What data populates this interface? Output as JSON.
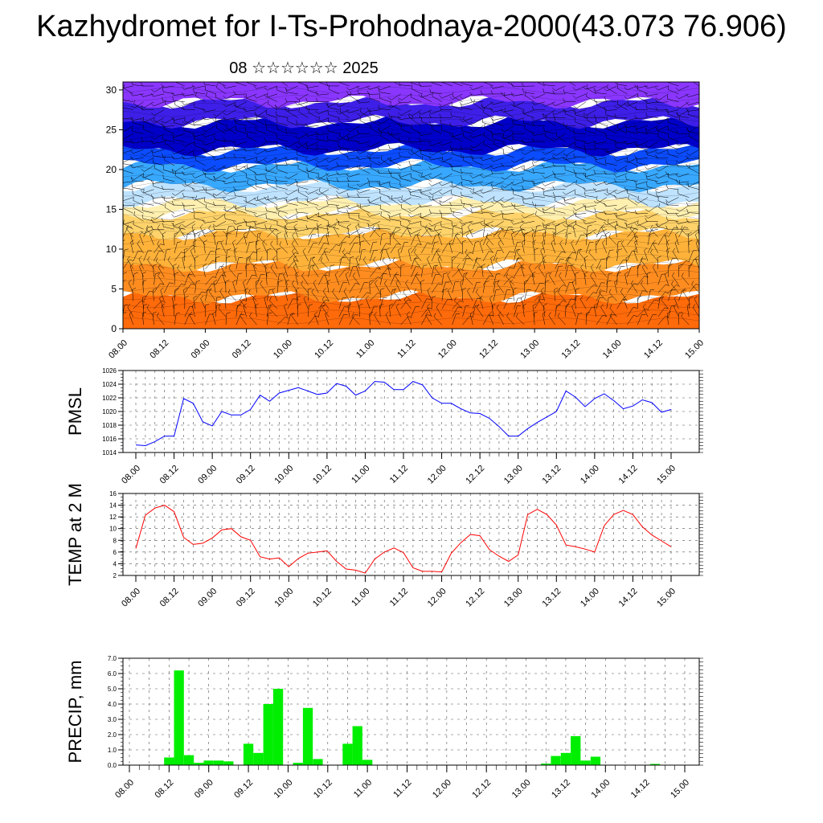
{
  "title": "Kazhydromet for I-Ts-Prohodnaya-2000(43.073 76.906)",
  "subtitle": "08 ☆☆☆☆☆☆ 2025",
  "colors": {
    "pmsl_line": "#0000ff",
    "temp_line": "#ff0000",
    "precip_bar": "#00ee00",
    "wind_barb": "#000000",
    "cross_section_top": "#7a2fff",
    "cross_section_mid": "#0000cc",
    "cross_section_low": "#ffe28a",
    "cross_section_bottom": "#ff5a00"
  },
  "chart_data": [
    {
      "type": "heatmap",
      "name": "height-time cross section with wind barbs",
      "x_ticks": [
        "08.00",
        "08.12",
        "09.00",
        "09.12",
        "10.00",
        "10.12",
        "11.00",
        "11.12",
        "12.00",
        "12.12",
        "13.00",
        "13.12",
        "14.00",
        "14.12",
        "15.00"
      ],
      "y_ticks": [
        0,
        5,
        10,
        15,
        20,
        25,
        30
      ],
      "ylim": [
        0,
        31
      ],
      "xlim": [
        0,
        168
      ],
      "color_bands": [
        {
          "from": 0,
          "to": 4,
          "color": "#ff6a0a"
        },
        {
          "from": 4,
          "to": 8,
          "color": "#ff8c1f"
        },
        {
          "from": 8,
          "to": 12,
          "color": "#ffb23a"
        },
        {
          "from": 12,
          "to": 14.5,
          "color": "#ffd36a"
        },
        {
          "from": 14.5,
          "to": 16,
          "color": "#fff0b0"
        },
        {
          "from": 16,
          "to": 18,
          "color": "#bfe3ff"
        },
        {
          "from": 18,
          "to": 20.5,
          "color": "#38a8ff"
        },
        {
          "from": 20.5,
          "to": 22.5,
          "color": "#0b4cff"
        },
        {
          "from": 22.5,
          "to": 26,
          "color": "#0000c8"
        },
        {
          "from": 26,
          "to": 28.5,
          "color": "#3d1fe8"
        },
        {
          "from": 28.5,
          "to": 31,
          "color": "#8a36ff"
        }
      ]
    },
    {
      "type": "line",
      "ylabel": "PMSL",
      "x_ticks": [
        "08.00",
        "08.12",
        "09.00",
        "09.12",
        "10.00",
        "10.12",
        "11.00",
        "11.12",
        "12.00",
        "12.12",
        "13.00",
        "13.12",
        "14.00",
        "14.12",
        "15.00"
      ],
      "y_ticks": [
        1014,
        1016,
        1018,
        1020,
        1022,
        1024,
        1026
      ],
      "ylim": [
        1014,
        1026
      ],
      "xlim": [
        0,
        171
      ],
      "x": [
        0,
        3,
        6,
        9,
        12,
        15,
        18,
        21,
        24,
        27,
        30,
        33,
        36,
        39,
        42,
        45,
        48,
        51,
        54,
        57,
        60,
        63,
        66,
        69,
        72,
        75,
        78,
        81,
        84,
        87,
        90,
        93,
        96,
        99,
        102,
        105,
        108,
        111,
        114,
        117,
        120,
        123,
        126,
        129,
        132,
        135,
        138,
        141,
        144,
        147,
        150,
        153,
        156,
        159,
        162,
        165,
        168
      ],
      "values": [
        1015.1,
        1015.0,
        1015.6,
        1016.4,
        1016.4,
        1021.9,
        1021.2,
        1018.5,
        1017.9,
        1020.0,
        1019.5,
        1019.5,
        1020.3,
        1022.4,
        1021.5,
        1022.7,
        1023.1,
        1023.5,
        1023.0,
        1022.5,
        1022.7,
        1024.1,
        1023.7,
        1022.4,
        1023.0,
        1024.4,
        1024.3,
        1023.2,
        1023.2,
        1024.4,
        1023.9,
        1022.0,
        1021.2,
        1021.2,
        1020.4,
        1019.8,
        1019.7,
        1019.0,
        1017.8,
        1016.4,
        1016.4,
        1017.5,
        1018.4,
        1019.2,
        1020.0,
        1023.0,
        1022.1,
        1020.7,
        1021.9,
        1022.6,
        1021.6,
        1020.4,
        1020.8,
        1021.7,
        1021.3,
        1019.9,
        1020.3
      ]
    },
    {
      "type": "line",
      "ylabel": "TEMP at 2 M",
      "x_ticks": [
        "08.00",
        "08.12",
        "09.00",
        "09.12",
        "10.00",
        "10.12",
        "11.00",
        "11.12",
        "12.00",
        "12.12",
        "13.00",
        "13.12",
        "14.00",
        "14.12",
        "15.00"
      ],
      "y_ticks": [
        2,
        4,
        6,
        8,
        10,
        12,
        14,
        16
      ],
      "ylim": [
        2,
        16
      ],
      "xlim": [
        0,
        171
      ],
      "x": [
        0,
        3,
        6,
        9,
        12,
        15,
        18,
        21,
        24,
        27,
        30,
        33,
        36,
        39,
        42,
        45,
        48,
        51,
        54,
        57,
        60,
        63,
        66,
        69,
        72,
        75,
        78,
        81,
        84,
        87,
        90,
        93,
        96,
        99,
        102,
        105,
        108,
        111,
        114,
        117,
        120,
        123,
        126,
        129,
        132,
        135,
        138,
        141,
        144,
        147,
        150,
        153,
        156,
        159,
        162,
        165,
        168
      ],
      "values": [
        6.6,
        12.3,
        13.5,
        14.0,
        12.9,
        8.5,
        7.3,
        7.5,
        8.4,
        9.8,
        10.0,
        8.6,
        8.0,
        5.2,
        4.8,
        5.0,
        3.5,
        4.9,
        5.8,
        6.0,
        6.2,
        4.4,
        3.1,
        2.9,
        2.4,
        4.8,
        6.0,
        6.7,
        5.9,
        3.3,
        2.7,
        2.7,
        2.6,
        5.8,
        7.6,
        9.0,
        8.8,
        6.4,
        5.3,
        4.4,
        5.5,
        12.4,
        13.3,
        12.4,
        10.6,
        7.2,
        6.9,
        6.5,
        6.0,
        10.5,
        12.4,
        13.1,
        12.4,
        10.3,
        8.9,
        7.9,
        6.9
      ]
    },
    {
      "type": "bar",
      "ylabel": "PRECIP, mm",
      "x_ticks": [
        "08.00",
        "08.12",
        "09.00",
        "09.12",
        "10.00",
        "10.12",
        "11.00",
        "11.12",
        "12.00",
        "12.12",
        "13.00",
        "13.12",
        "14.00",
        "14.12",
        "15.00"
      ],
      "y_ticks": [
        "0.0",
        "1.0",
        "2.0",
        "3.0",
        "4.0",
        "5.0",
        "6.0",
        "7.0"
      ],
      "ylim": [
        0,
        7
      ],
      "xlim": [
        0,
        168
      ],
      "bar_width_hours": 3,
      "x": [
        12,
        15,
        18,
        21,
        24,
        27,
        30,
        33,
        36,
        39,
        42,
        45,
        48,
        51,
        54,
        57,
        60,
        63,
        66,
        69,
        72,
        75,
        78,
        81,
        84,
        87,
        90,
        93,
        96,
        99,
        102,
        105,
        108,
        111,
        114,
        117,
        120,
        123,
        126,
        129,
        132,
        135,
        138,
        141,
        144,
        147,
        150,
        153,
        156,
        159,
        162,
        165
      ],
      "values": [
        0.5,
        6.2,
        0.65,
        0.15,
        0.3,
        0.3,
        0.25,
        0.0,
        1.4,
        0.8,
        4.0,
        5.0,
        0.0,
        0.15,
        3.75,
        0.4,
        0.0,
        0.0,
        1.4,
        2.55,
        0.35,
        0.0,
        0.0,
        0.0,
        0.0,
        0.0,
        0.0,
        0.0,
        0.0,
        0.0,
        0.0,
        0.0,
        0.0,
        0.0,
        0.0,
        0.0,
        0.0,
        0.0,
        0.1,
        0.6,
        0.8,
        1.9,
        0.3,
        0.55,
        0.0,
        0.0,
        0.0,
        0.0,
        0.0,
        0.08,
        0.0,
        0.0
      ]
    }
  ]
}
